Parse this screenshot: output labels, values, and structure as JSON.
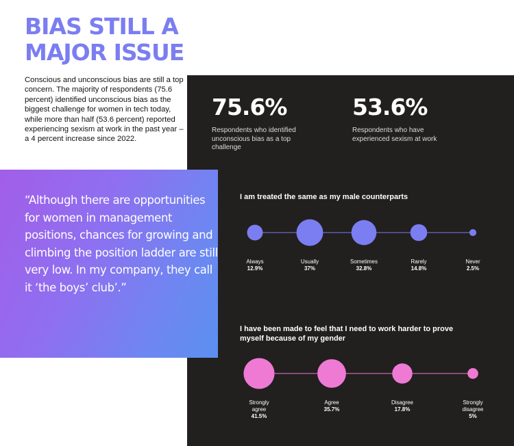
{
  "title": {
    "line1": "BIAS STILL A",
    "line2": "MAJOR ISSUE"
  },
  "intro": "Conscious and unconscious bias are still a top concern. The majority of respondents (75.6 percent) identified unconscious bias as the biggest challenge for women in tech today, while more than half (53.6 percent) reported experiencing sexism at work in the past year – a 4 percent increase since 2022.",
  "stats": [
    {
      "value": "75.6%",
      "desc": "Respondents who identified unconscious bias as a top challenge"
    },
    {
      "value": "53.6%",
      "desc": "Respondents who have experienced sexism at work"
    }
  ],
  "quote": "“Although there are opportunities for women in management positions, chances for growing and climbing the position ladder are still very low. In my company, they call it ‘the boys’ club’.”",
  "colors": {
    "title": "#7b7ef0",
    "dark_panel": "#221f1f",
    "chart1": "#7b7ef0",
    "chart2": "#ee7ad4"
  },
  "chart_data": [
    {
      "type": "scatter",
      "title": "I am treated the same as my male counterparts",
      "categories": [
        [
          "Always"
        ],
        [
          "Usually"
        ],
        [
          "Sometimes"
        ],
        [
          "Rarely"
        ],
        [
          "Never"
        ]
      ],
      "values": [
        12.9,
        37,
        32.8,
        14.8,
        2.5
      ],
      "value_labels": [
        "12.9%",
        "37%",
        "32.8%",
        "14.8%",
        "2.5%"
      ],
      "color": "#7b7ef0"
    },
    {
      "type": "scatter",
      "title": "I have been made to feel that I need to work harder to prove myself because of my gender",
      "categories": [
        [
          "Strongly",
          "agree"
        ],
        [
          "Agree"
        ],
        [
          "Disagree"
        ],
        [
          "Strongly",
          "disagree"
        ]
      ],
      "values": [
        41.5,
        35.7,
        17.8,
        5
      ],
      "value_labels": [
        "41.5%",
        "35.7%",
        "17.8%",
        "5%"
      ],
      "color": "#ee7ad4"
    }
  ]
}
